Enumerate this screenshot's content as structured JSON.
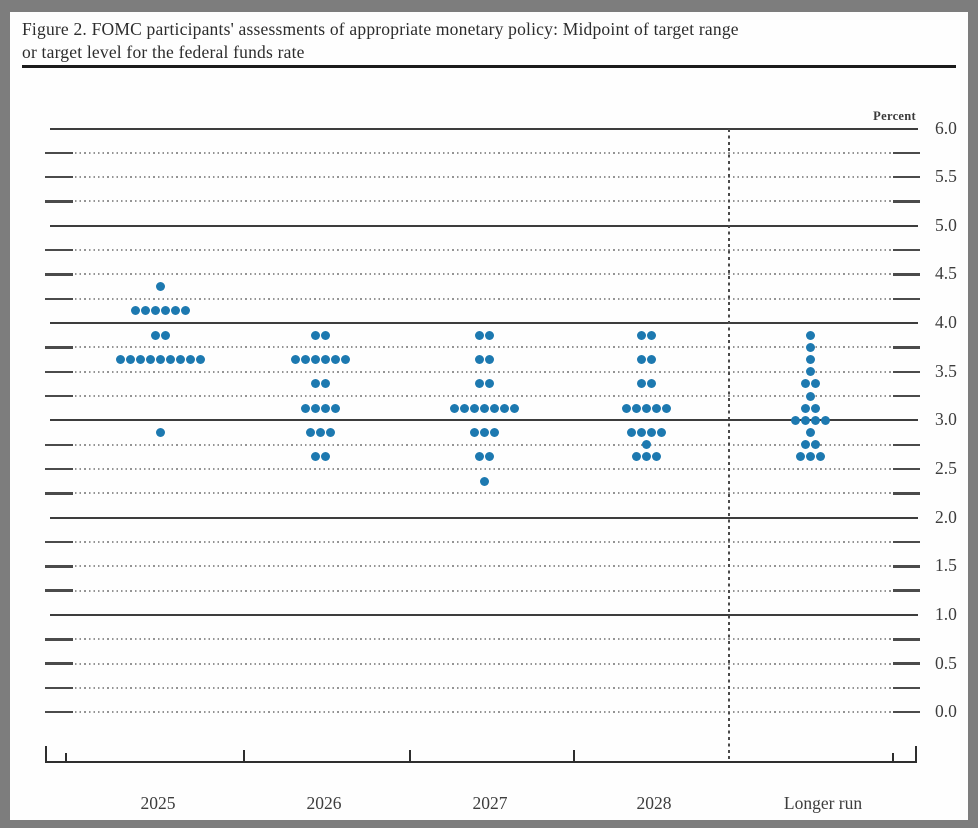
{
  "title": {
    "line1": "Figure 2. FOMC participants' assessments of appropriate monetary policy: Midpoint of target range",
    "line2": "or target level for the federal funds rate"
  },
  "chart_data": {
    "type": "scatter",
    "variant": "fomc-dot-plot",
    "title": "Figure 2. FOMC participants' assessments of appropriate monetary policy: Midpoint of target range or target level for the federal funds rate",
    "ylabel": "Percent",
    "ylim": [
      0.0,
      6.0
    ],
    "y_grid_step": 0.25,
    "solid_gridlines": [
      6.0,
      5.0,
      4.0,
      3.0,
      2.0,
      1.0
    ],
    "y_tick_labels": [
      "6.0",
      "5.5",
      "5.0",
      "4.5",
      "4.0",
      "3.5",
      "3.0",
      "2.5",
      "2.0",
      "1.5",
      "1.0",
      "0.5",
      "0.0"
    ],
    "grid": true,
    "legend_position": "none",
    "dot_color": "#1d79b0",
    "categories": [
      "2025",
      "2026",
      "2027",
      "2028",
      "Longer run"
    ],
    "separator_before_category": "Longer run",
    "series": [
      {
        "name": "2025",
        "dots": [
          {
            "y": 4.375,
            "count": 1
          },
          {
            "y": 4.125,
            "count": 6
          },
          {
            "y": 3.875,
            "count": 2
          },
          {
            "y": 3.625,
            "count": 9
          },
          {
            "y": 2.875,
            "count": 1
          }
        ]
      },
      {
        "name": "2026",
        "dots": [
          {
            "y": 3.875,
            "count": 2
          },
          {
            "y": 3.625,
            "count": 6
          },
          {
            "y": 3.375,
            "count": 2
          },
          {
            "y": 3.125,
            "count": 4
          },
          {
            "y": 2.875,
            "count": 3
          },
          {
            "y": 2.625,
            "count": 2
          }
        ]
      },
      {
        "name": "2027",
        "dots": [
          {
            "y": 3.875,
            "count": 2
          },
          {
            "y": 3.625,
            "count": 2
          },
          {
            "y": 3.375,
            "count": 2
          },
          {
            "y": 3.125,
            "count": 7
          },
          {
            "y": 2.875,
            "count": 3
          },
          {
            "y": 2.625,
            "count": 2
          },
          {
            "y": 2.375,
            "count": 1
          }
        ]
      },
      {
        "name": "2028",
        "dots": [
          {
            "y": 3.875,
            "count": 2
          },
          {
            "y": 3.625,
            "count": 2
          },
          {
            "y": 3.375,
            "count": 2
          },
          {
            "y": 3.125,
            "count": 5
          },
          {
            "y": 2.875,
            "count": 4
          },
          {
            "y": 2.75,
            "count": 1
          },
          {
            "y": 2.625,
            "count": 3
          }
        ]
      },
      {
        "name": "Longer run",
        "dots": [
          {
            "y": 3.875,
            "count": 1
          },
          {
            "y": 3.75,
            "count": 1
          },
          {
            "y": 3.625,
            "count": 1
          },
          {
            "y": 3.5,
            "count": 1
          },
          {
            "y": 3.375,
            "count": 2
          },
          {
            "y": 3.25,
            "count": 1
          },
          {
            "y": 3.125,
            "count": 2
          },
          {
            "y": 3.0,
            "count": 4
          },
          {
            "y": 2.875,
            "count": 1
          },
          {
            "y": 2.75,
            "count": 2
          },
          {
            "y": 2.625,
            "count": 3
          }
        ]
      }
    ]
  }
}
